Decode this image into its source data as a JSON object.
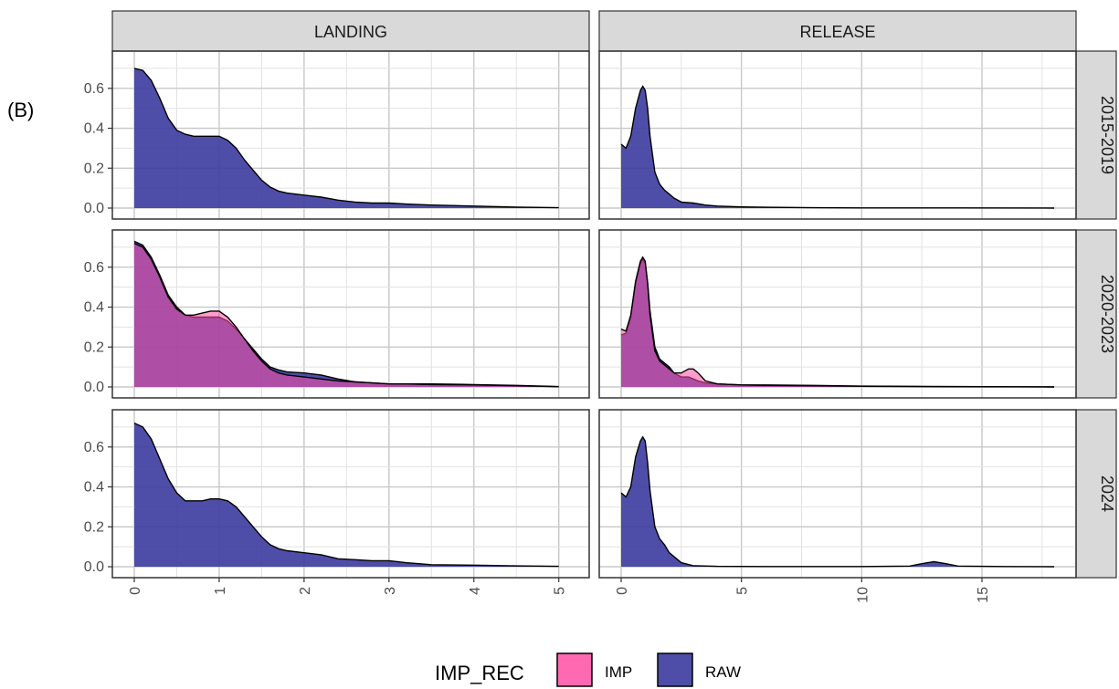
{
  "panel_label": "(B)",
  "chart_data": {
    "type": "area",
    "subtype": "faceted density",
    "legend": {
      "title": "IMP_REC",
      "placement": "bottom",
      "entries": [
        {
          "label": "IMP",
          "color": "#ff4fa3"
        },
        {
          "label": "RAW",
          "color": "#3b3b9e"
        }
      ]
    },
    "columns": [
      {
        "name": "LANDING",
        "xlim": [
          0,
          5.1
        ],
        "x_ticks": [
          0,
          1,
          2,
          3,
          4,
          5
        ]
      },
      {
        "name": "RELEASE",
        "xlim": [
          0,
          18
        ],
        "x_ticks": [
          0,
          5,
          10,
          15
        ]
      }
    ],
    "rows": [
      "2015-2019",
      "2020-2023",
      "2024"
    ],
    "ylim": [
      0,
      0.75
    ],
    "y_ticks": [
      "0.0",
      "0.2",
      "0.4",
      "0.6"
    ],
    "y_tick_values": [
      0,
      0.2,
      0.4,
      0.6
    ],
    "grid": true,
    "panels": [
      {
        "row": "2015-2019",
        "column": "LANDING",
        "series": [
          {
            "name": "RAW",
            "x": [
              0,
              0.1,
              0.2,
              0.3,
              0.4,
              0.5,
              0.6,
              0.7,
              0.8,
              0.9,
              1.0,
              1.1,
              1.2,
              1.3,
              1.4,
              1.5,
              1.6,
              1.7,
              1.8,
              2.0,
              2.2,
              2.4,
              2.6,
              2.8,
              3.0,
              3.2,
              3.5,
              4.0,
              4.5,
              5.0
            ],
            "y": [
              0.7,
              0.69,
              0.64,
              0.55,
              0.45,
              0.39,
              0.37,
              0.36,
              0.36,
              0.36,
              0.36,
              0.34,
              0.3,
              0.24,
              0.19,
              0.14,
              0.105,
              0.085,
              0.075,
              0.065,
              0.055,
              0.04,
              0.03,
              0.025,
              0.025,
              0.02,
              0.015,
              0.01,
              0.005,
              0.002
            ]
          }
        ]
      },
      {
        "row": "2015-2019",
        "column": "RELEASE",
        "series": [
          {
            "name": "RAW",
            "x": [
              0,
              0.2,
              0.4,
              0.6,
              0.8,
              0.9,
              1.0,
              1.1,
              1.2,
              1.4,
              1.6,
              1.8,
              2.0,
              2.2,
              2.5,
              3.0,
              3.5,
              4.0,
              5.0,
              6.0,
              8.0,
              10.0,
              14.0,
              18.0
            ],
            "y": [
              0.32,
              0.3,
              0.36,
              0.5,
              0.59,
              0.61,
              0.59,
              0.5,
              0.36,
              0.18,
              0.12,
              0.09,
              0.07,
              0.05,
              0.03,
              0.025,
              0.015,
              0.01,
              0.006,
              0.004,
              0.002,
              0.001,
              0.001,
              0.0
            ]
          }
        ]
      },
      {
        "row": "2020-2023",
        "column": "LANDING",
        "series": [
          {
            "name": "RAW",
            "x": [
              0,
              0.1,
              0.2,
              0.3,
              0.4,
              0.5,
              0.6,
              0.7,
              0.8,
              0.9,
              1.0,
              1.1,
              1.2,
              1.3,
              1.4,
              1.5,
              1.6,
              1.7,
              1.8,
              2.0,
              2.2,
              2.4,
              2.6,
              2.8,
              3.0,
              3.2,
              3.5,
              4.0,
              4.5,
              4.8,
              5.0
            ],
            "y": [
              0.73,
              0.71,
              0.65,
              0.56,
              0.46,
              0.4,
              0.36,
              0.35,
              0.35,
              0.35,
              0.35,
              0.33,
              0.29,
              0.24,
              0.19,
              0.14,
              0.1,
              0.085,
              0.075,
              0.07,
              0.06,
              0.04,
              0.025,
              0.02,
              0.015,
              0.015,
              0.015,
              0.012,
              0.008,
              0.004,
              0.002
            ]
          },
          {
            "name": "IMP",
            "x": [
              0,
              0.1,
              0.2,
              0.3,
              0.4,
              0.5,
              0.6,
              0.7,
              0.8,
              0.9,
              1.0,
              1.1,
              1.2,
              1.3,
              1.4,
              1.5,
              1.6,
              1.7,
              1.8,
              2.0,
              2.2,
              2.4,
              2.6,
              2.8,
              3.0,
              3.2,
              3.5,
              4.0,
              4.5,
              4.8,
              5.0
            ],
            "y": [
              0.72,
              0.7,
              0.64,
              0.55,
              0.45,
              0.39,
              0.36,
              0.36,
              0.37,
              0.38,
              0.38,
              0.35,
              0.3,
              0.24,
              0.18,
              0.13,
              0.09,
              0.07,
              0.06,
              0.05,
              0.04,
              0.03,
              0.025,
              0.02,
              0.015,
              0.015,
              0.012,
              0.01,
              0.006,
              0.003,
              0.001
            ]
          }
        ]
      },
      {
        "row": "2020-2023",
        "column": "RELEASE",
        "series": [
          {
            "name": "RAW",
            "x": [
              0,
              0.2,
              0.4,
              0.6,
              0.8,
              0.9,
              1.0,
              1.1,
              1.2,
              1.4,
              1.6,
              1.8,
              2.0,
              2.2,
              2.5,
              2.8,
              3.0,
              3.2,
              3.5,
              4.0,
              5.0,
              6.0,
              8.0,
              10.0,
              14.0,
              18.0
            ],
            "y": [
              0.26,
              0.27,
              0.35,
              0.52,
              0.62,
              0.64,
              0.62,
              0.52,
              0.38,
              0.2,
              0.14,
              0.12,
              0.1,
              0.07,
              0.05,
              0.05,
              0.04,
              0.03,
              0.02,
              0.015,
              0.01,
              0.01,
              0.008,
              0.004,
              0.002,
              0.0
            ]
          },
          {
            "name": "IMP",
            "x": [
              0,
              0.2,
              0.4,
              0.6,
              0.8,
              0.9,
              1.0,
              1.1,
              1.2,
              1.4,
              1.6,
              1.8,
              2.0,
              2.2,
              2.5,
              2.8,
              3.0,
              3.2,
              3.5,
              4.0,
              5.0,
              6.0,
              8.0,
              10.0,
              14.0,
              18.0
            ],
            "y": [
              0.29,
              0.28,
              0.36,
              0.53,
              0.63,
              0.65,
              0.63,
              0.52,
              0.36,
              0.18,
              0.13,
              0.11,
              0.09,
              0.07,
              0.07,
              0.09,
              0.09,
              0.07,
              0.03,
              0.015,
              0.01,
              0.008,
              0.006,
              0.003,
              0.001,
              0.0
            ]
          }
        ]
      },
      {
        "row": "2024",
        "column": "LANDING",
        "series": [
          {
            "name": "RAW",
            "x": [
              0,
              0.1,
              0.2,
              0.3,
              0.4,
              0.5,
              0.6,
              0.7,
              0.8,
              0.9,
              1.0,
              1.1,
              1.2,
              1.3,
              1.4,
              1.5,
              1.6,
              1.7,
              1.8,
              2.0,
              2.2,
              2.4,
              2.6,
              2.8,
              3.0,
              3.2,
              3.5,
              4.0,
              4.5,
              5.0
            ],
            "y": [
              0.72,
              0.7,
              0.64,
              0.54,
              0.44,
              0.37,
              0.33,
              0.33,
              0.33,
              0.34,
              0.34,
              0.33,
              0.3,
              0.25,
              0.2,
              0.15,
              0.11,
              0.09,
              0.08,
              0.07,
              0.06,
              0.04,
              0.035,
              0.03,
              0.03,
              0.02,
              0.01,
              0.008,
              0.004,
              0.002
            ]
          }
        ]
      },
      {
        "row": "2024",
        "column": "RELEASE",
        "series": [
          {
            "name": "RAW",
            "x": [
              0,
              0.2,
              0.4,
              0.6,
              0.8,
              0.9,
              1.0,
              1.1,
              1.2,
              1.4,
              1.6,
              1.8,
              2.0,
              2.5,
              3.0,
              4.0,
              6.0,
              8.0,
              10.0,
              12.0,
              12.5,
              13.0,
              13.5,
              14.0,
              16.0,
              18.0
            ],
            "y": [
              0.37,
              0.35,
              0.4,
              0.55,
              0.63,
              0.65,
              0.63,
              0.52,
              0.38,
              0.2,
              0.14,
              0.11,
              0.07,
              0.02,
              0.005,
              0.002,
              0.001,
              0.001,
              0.001,
              0.003,
              0.015,
              0.025,
              0.015,
              0.003,
              0.001,
              0.0
            ]
          }
        ]
      }
    ]
  }
}
